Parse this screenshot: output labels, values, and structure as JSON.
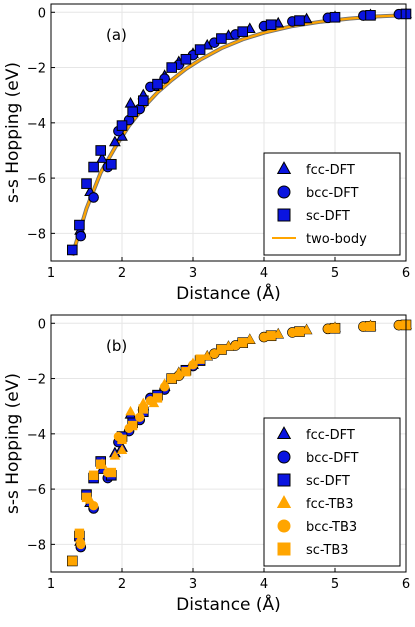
{
  "figure": {
    "panels": [
      {
        "tag": "(a)",
        "xlabel": "Distance (Å)",
        "ylabel": "s-s Hopping (eV)"
      },
      {
        "tag": "(b)",
        "xlabel": "Distance (Å)",
        "ylabel": "s-s Hopping (eV)"
      }
    ]
  },
  "colors": {
    "dft_fill": "#0a14e0",
    "dft_stroke": "#000000",
    "tb3_fill": "#ffa500",
    "two_body_line": "#ffa500",
    "grid": "#e6e6e6"
  },
  "chart_data": [
    {
      "type": "scatter",
      "title": "(a)",
      "xlabel": "Distance (Å)",
      "ylabel": "s-s Hopping (eV)",
      "xlim": [
        1,
        6
      ],
      "ylim": [
        -9,
        0.3
      ],
      "xticks": [
        1,
        2,
        3,
        4,
        5,
        6
      ],
      "yticks": [
        0,
        -2,
        -4,
        -6,
        -8
      ],
      "grid": true,
      "legend_position": "bottom-right",
      "series": [
        {
          "name": "fcc-DFT",
          "marker": "triangle",
          "x": [
            1.41,
            1.55,
            1.72,
            1.9,
            2.0,
            2.12,
            2.3,
            2.45,
            2.6,
            2.8,
            3.0,
            3.2,
            3.5,
            3.8,
            4.2,
            4.6,
            5.0,
            5.5,
            6.0
          ],
          "y": [
            -7.9,
            -6.5,
            -5.3,
            -4.7,
            -4.5,
            -3.3,
            -3.0,
            -2.7,
            -2.3,
            -1.8,
            -1.5,
            -1.2,
            -0.85,
            -0.6,
            -0.4,
            -0.25,
            -0.17,
            -0.1,
            -0.06
          ]
        },
        {
          "name": "bcc-DFT",
          "marker": "circle",
          "x": [
            1.42,
            1.6,
            1.8,
            1.95,
            2.1,
            2.25,
            2.4,
            2.6,
            2.8,
            3.0,
            3.3,
            3.6,
            4.0,
            4.4,
            4.9,
            5.4,
            5.9
          ],
          "y": [
            -8.1,
            -6.7,
            -5.6,
            -4.3,
            -3.9,
            -3.5,
            -2.7,
            -2.4,
            -1.9,
            -1.55,
            -1.1,
            -0.8,
            -0.5,
            -0.33,
            -0.2,
            -0.12,
            -0.07
          ]
        },
        {
          "name": "sc-DFT",
          "marker": "square",
          "x": [
            1.3,
            1.4,
            1.5,
            1.6,
            1.7,
            1.85,
            2.0,
            2.15,
            2.3,
            2.5,
            2.7,
            2.9,
            3.1,
            3.4,
            3.7,
            4.1,
            4.5,
            5.0,
            5.5,
            6.0
          ],
          "y": [
            -8.6,
            -7.7,
            -6.2,
            -5.6,
            -5.0,
            -5.5,
            -4.1,
            -3.6,
            -3.2,
            -2.6,
            -2.0,
            -1.7,
            -1.35,
            -0.95,
            -0.7,
            -0.45,
            -0.3,
            -0.18,
            -0.11,
            -0.06
          ]
        },
        {
          "name": "two-body",
          "marker": "line",
          "x": [
            1.3,
            1.5,
            1.7,
            1.9,
            2.1,
            2.3,
            2.5,
            2.7,
            2.9,
            3.1,
            3.4,
            3.7,
            4.0,
            4.4,
            4.8,
            5.2,
            5.6,
            6.0
          ],
          "y": [
            -8.8,
            -7.1,
            -5.8,
            -4.9,
            -4.1,
            -3.45,
            -2.9,
            -2.45,
            -2.05,
            -1.72,
            -1.3,
            -0.98,
            -0.74,
            -0.5,
            -0.34,
            -0.23,
            -0.15,
            -0.1
          ]
        }
      ]
    },
    {
      "type": "scatter",
      "title": "(b)",
      "xlabel": "Distance (Å)",
      "ylabel": "s-s Hopping (eV)",
      "xlim": [
        1,
        6
      ],
      "ylim": [
        -9,
        0.3
      ],
      "xticks": [
        1,
        2,
        3,
        4,
        5,
        6
      ],
      "yticks": [
        0,
        -2,
        -4,
        -6,
        -8
      ],
      "grid": true,
      "legend_position": "bottom-right",
      "series": [
        {
          "name": "fcc-DFT",
          "marker": "triangle",
          "style": "dft",
          "x": [
            1.41,
            1.55,
            1.72,
            1.9,
            2.0,
            2.12,
            2.3,
            2.45,
            2.6,
            2.8,
            3.0,
            3.2,
            3.5,
            3.8,
            4.2,
            4.6,
            5.0,
            5.5,
            6.0
          ],
          "y": [
            -7.9,
            -6.5,
            -5.3,
            -4.7,
            -4.5,
            -3.3,
            -3.0,
            -2.7,
            -2.3,
            -1.8,
            -1.5,
            -1.2,
            -0.85,
            -0.6,
            -0.4,
            -0.25,
            -0.17,
            -0.1,
            -0.06
          ]
        },
        {
          "name": "bcc-DFT",
          "marker": "circle",
          "style": "dft",
          "x": [
            1.42,
            1.6,
            1.8,
            1.95,
            2.1,
            2.25,
            2.4,
            2.6,
            2.8,
            3.0,
            3.3,
            3.6,
            4.0,
            4.4,
            4.9,
            5.4,
            5.9
          ],
          "y": [
            -8.1,
            -6.7,
            -5.6,
            -4.3,
            -3.9,
            -3.5,
            -2.7,
            -2.4,
            -1.9,
            -1.55,
            -1.1,
            -0.8,
            -0.5,
            -0.33,
            -0.2,
            -0.12,
            -0.07
          ]
        },
        {
          "name": "sc-DFT",
          "marker": "square",
          "style": "dft",
          "x": [
            1.3,
            1.4,
            1.5,
            1.6,
            1.7,
            1.85,
            2.0,
            2.15,
            2.3,
            2.5,
            2.7,
            2.9,
            3.1,
            3.4,
            3.7,
            4.1,
            4.5,
            5.0,
            5.5,
            6.0
          ],
          "y": [
            -8.6,
            -7.7,
            -6.2,
            -5.6,
            -5.0,
            -5.5,
            -4.1,
            -3.6,
            -3.2,
            -2.6,
            -2.0,
            -1.7,
            -1.35,
            -0.95,
            -0.7,
            -0.45,
            -0.3,
            -0.18,
            -0.11,
            -0.06
          ]
        },
        {
          "name": "fcc-TB3",
          "marker": "triangle",
          "style": "tb3",
          "x": [
            1.41,
            1.55,
            1.72,
            1.9,
            2.0,
            2.12,
            2.3,
            2.45,
            2.6,
            2.8,
            3.0,
            3.2,
            3.5,
            3.8,
            4.2,
            4.6,
            5.0,
            5.5,
            6.0
          ],
          "y": [
            -7.8,
            -6.4,
            -5.1,
            -4.8,
            -4.6,
            -3.2,
            -2.9,
            -2.9,
            -2.2,
            -1.8,
            -1.45,
            -1.2,
            -0.85,
            -0.6,
            -0.4,
            -0.25,
            -0.17,
            -0.1,
            -0.06
          ]
        },
        {
          "name": "bcc-TB3",
          "marker": "circle",
          "style": "tb3",
          "x": [
            1.42,
            1.6,
            1.8,
            1.95,
            2.1,
            2.25,
            2.4,
            2.6,
            2.8,
            3.0,
            3.3,
            3.6,
            4.0,
            4.4,
            4.9,
            5.4,
            5.9
          ],
          "y": [
            -8.0,
            -6.6,
            -5.4,
            -4.1,
            -3.8,
            -3.4,
            -2.8,
            -2.3,
            -1.9,
            -1.5,
            -1.1,
            -0.8,
            -0.5,
            -0.33,
            -0.2,
            -0.12,
            -0.07
          ]
        },
        {
          "name": "sc-TB3",
          "marker": "square",
          "style": "tb3",
          "x": [
            1.3,
            1.4,
            1.5,
            1.6,
            1.7,
            1.85,
            2.0,
            2.15,
            2.3,
            2.5,
            2.7,
            2.9,
            3.1,
            3.4,
            3.7,
            4.1,
            4.5,
            5.0,
            5.5,
            6.0
          ],
          "y": [
            -8.6,
            -7.6,
            -6.3,
            -5.5,
            -5.1,
            -5.4,
            -4.2,
            -3.7,
            -3.1,
            -2.7,
            -2.0,
            -1.75,
            -1.3,
            -0.95,
            -0.7,
            -0.45,
            -0.3,
            -0.18,
            -0.11,
            -0.06
          ]
        }
      ]
    }
  ]
}
